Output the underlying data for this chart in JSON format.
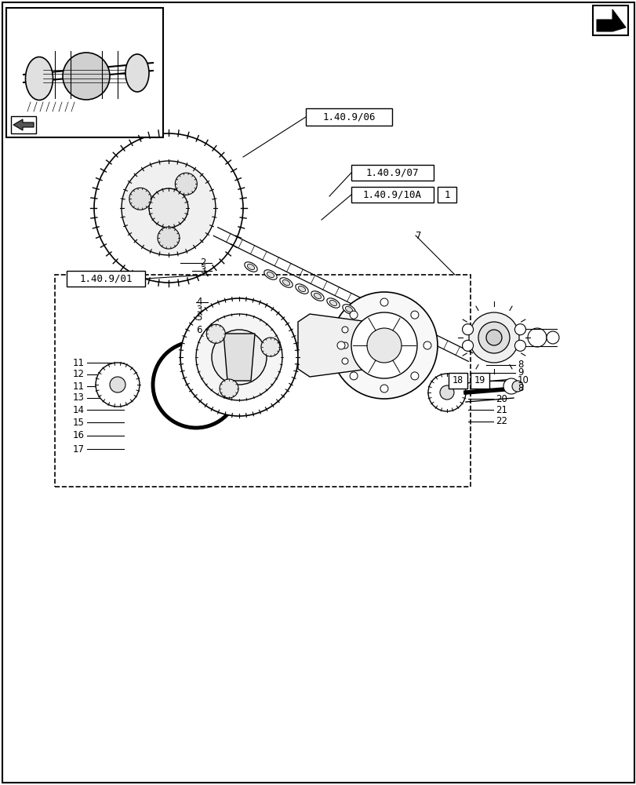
{
  "bg_color": "#ffffff",
  "line_color": "#000000",
  "fig_width": 8.12,
  "fig_height": 10.0,
  "dpi": 100,
  "labels": {
    "ref_1": "1.40.9/06",
    "ref_2": "1.40.9/07",
    "ref_3": "1.40.9/10A",
    "ref_4": "1",
    "ref_5": "1.40.9/01",
    "num_2": "2",
    "num_3a": "3",
    "num_3b": "3",
    "num_4": "4",
    "num_5": "5",
    "num_6": "6",
    "num_7": "7",
    "num_8a": "8",
    "num_8b": "8",
    "num_9": "9",
    "num_10": "10",
    "num_11a": "11",
    "num_11b": "11",
    "num_12": "12",
    "num_13": "13",
    "num_14": "14",
    "num_15": "15",
    "num_16": "16",
    "num_17": "17",
    "num_18": "18",
    "num_19": "19",
    "num_20": "20",
    "num_21": "21",
    "num_22": "22"
  }
}
